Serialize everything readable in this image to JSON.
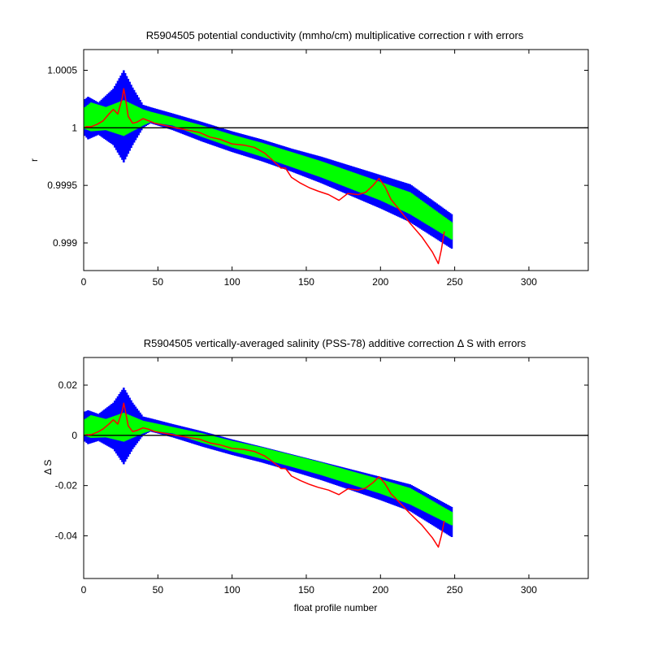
{
  "colors": {
    "background": "#ffffff",
    "axes": "#000000",
    "error_outer": "#0000ff",
    "error_inner": "#00ff00",
    "correction_line": "#ff0000",
    "reference_line": "#000000"
  },
  "chart_data": [
    {
      "type": "line",
      "title": "R5904505 potential conductivity (mmho/cm) multiplicative correction r with errors",
      "xlabel": "",
      "ylabel": "r",
      "xlim": [
        0,
        340
      ],
      "ylim": [
        0.99876,
        1.00068
      ],
      "xticks": [
        0,
        50,
        100,
        150,
        200,
        250,
        300
      ],
      "xtick_labels": [
        "0",
        "50",
        "100",
        "150",
        "200",
        "250",
        "300"
      ],
      "yticks": [
        0.999,
        0.9995,
        1,
        1.0005
      ],
      "ytick_labels": [
        "0.999",
        "0.9995",
        "1",
        "1.0005"
      ],
      "reference_line": 1,
      "grid": false,
      "legend": "none",
      "series": [
        {
          "role": "outer-error-upper",
          "x": [
            1,
            3,
            10,
            20,
            27,
            33,
            40,
            45,
            60,
            80,
            100,
            120,
            140,
            160,
            180,
            200,
            220,
            248
          ],
          "y": [
            1.00025,
            1.00027,
            1.00022,
            1.00034,
            1.0005,
            1.00035,
            1.0002,
            1.00018,
            1.000125,
            1.00005,
            0.99997,
            0.9999,
            0.99982,
            0.99975,
            0.99967,
            0.99959,
            0.99951,
            0.99925
          ]
        },
        {
          "role": "outer-error-lower",
          "x": [
            1,
            3,
            10,
            20,
            27,
            33,
            40,
            45,
            60,
            80,
            100,
            120,
            140,
            160,
            180,
            200,
            220,
            248
          ],
          "y": [
            0.99993,
            0.9999,
            0.99994,
            0.99985,
            0.9997,
            0.99985,
            1.0,
            1.00004,
            0.99998,
            0.99988,
            0.99979,
            0.99971,
            0.99962,
            0.99952,
            0.99941,
            0.9993,
            0.99918,
            0.99895
          ]
        },
        {
          "role": "inner-error-upper",
          "x": [
            1,
            5,
            15,
            27,
            40,
            45,
            60,
            80,
            100,
            120,
            140,
            160,
            180,
            200,
            220,
            248
          ],
          "y": [
            1.00018,
            1.00022,
            1.00018,
            1.00024,
            1.00016,
            1.00014,
            1.00009,
            1.00002,
            0.99994,
            0.99987,
            0.99979,
            0.99971,
            0.99962,
            0.99953,
            0.99944,
            0.99918
          ]
        },
        {
          "role": "inner-error-lower",
          "x": [
            1,
            5,
            15,
            27,
            40,
            45,
            60,
            80,
            100,
            120,
            140,
            160,
            180,
            200,
            220,
            248
          ],
          "y": [
            0.99999,
            0.99997,
            0.99998,
            0.99993,
            1.00002,
            1.00005,
            1.00002,
            0.99992,
            0.99983,
            0.99975,
            0.99966,
            0.99957,
            0.99947,
            0.99937,
            0.99925,
            0.99903
          ]
        },
        {
          "role": "correction",
          "x": [
            1,
            5,
            9,
            13,
            17,
            20,
            23,
            26,
            27,
            28,
            30,
            33,
            36,
            40,
            44,
            48,
            55,
            62,
            70,
            78,
            85,
            92,
            100,
            108,
            115,
            122,
            128,
            133,
            136,
            140,
            146,
            152,
            158,
            165,
            172,
            178,
            185,
            190,
            195,
            199,
            203,
            207,
            212,
            220,
            228,
            235,
            239,
            241,
            243
          ],
          "y": [
            1.00001,
            1.00001,
            1.00003,
            1.00006,
            1.00012,
            1.00016,
            1.00012,
            1.00026,
            1.00034,
            1.00027,
            1.0001,
            1.00004,
            1.00005,
            1.00008,
            1.00006,
            1.00004,
            1.00002,
            1.0,
            0.99998,
            0.99996,
            0.99992,
            0.9999,
            0.99986,
            0.99985,
            0.99983,
            0.99978,
            0.99971,
            0.99965,
            0.99965,
            0.99957,
            0.99952,
            0.99948,
            0.99945,
            0.99942,
            0.99937,
            0.99943,
            0.99942,
            0.99944,
            0.9995,
            0.99956,
            0.99949,
            0.99938,
            0.9993,
            0.99917,
            0.99905,
            0.99892,
            0.99882,
            0.99894,
            0.9991
          ]
        }
      ]
    },
    {
      "type": "line",
      "title": "R5904505 vertically-averaged salinity (PSS-78) additive correction Δ S with errors",
      "xlabel": "float profile number",
      "ylabel": "Δ S",
      "xlim": [
        0,
        340
      ],
      "ylim": [
        -0.057,
        0.031
      ],
      "xticks": [
        0,
        50,
        100,
        150,
        200,
        250,
        300
      ],
      "xtick_labels": [
        "0",
        "50",
        "100",
        "150",
        "200",
        "250",
        "300"
      ],
      "yticks": [
        -0.04,
        -0.02,
        0,
        0.02
      ],
      "ytick_labels": [
        "-0.04",
        "-0.02",
        "0",
        "0.02"
      ],
      "reference_line": 0,
      "grid": false,
      "legend": "none",
      "series": [
        {
          "role": "outer-error-upper",
          "x": [
            1,
            3,
            10,
            20,
            27,
            33,
            40,
            45,
            60,
            80,
            100,
            120,
            140,
            160,
            180,
            200,
            220,
            248
          ],
          "y": [
            0.0095,
            0.01,
            0.0085,
            0.013,
            0.019,
            0.013,
            0.0075,
            0.0068,
            0.0045,
            0.0016,
            -0.0016,
            -0.0045,
            -0.0075,
            -0.0105,
            -0.0135,
            -0.0165,
            -0.0195,
            -0.0285
          ]
        },
        {
          "role": "outer-error-lower",
          "x": [
            1,
            3,
            10,
            20,
            27,
            33,
            40,
            45,
            60,
            80,
            100,
            120,
            140,
            160,
            180,
            200,
            220,
            248
          ],
          "y": [
            -0.0025,
            -0.0035,
            -0.0022,
            -0.0055,
            -0.0115,
            -0.0055,
            0.0,
            0.0015,
            -0.0008,
            -0.0045,
            -0.0078,
            -0.0108,
            -0.0142,
            -0.0178,
            -0.0218,
            -0.0258,
            -0.0302,
            -0.0405
          ]
        },
        {
          "role": "inner-error-upper",
          "x": [
            1,
            5,
            15,
            27,
            40,
            45,
            60,
            80,
            100,
            120,
            140,
            160,
            180,
            200,
            220,
            248
          ],
          "y": [
            0.0065,
            0.008,
            0.0065,
            0.009,
            0.0058,
            0.0052,
            0.0033,
            0.0008,
            -0.0022,
            -0.0048,
            -0.0078,
            -0.0108,
            -0.0142,
            -0.0175,
            -0.021,
            -0.0305
          ]
        },
        {
          "role": "inner-error-lower",
          "x": [
            1,
            5,
            15,
            27,
            40,
            45,
            60,
            80,
            100,
            120,
            140,
            160,
            180,
            200,
            220,
            248
          ],
          "y": [
            -0.0002,
            -0.001,
            -0.0008,
            -0.0025,
            0.0008,
            0.0018,
            0.0008,
            -0.003,
            -0.0064,
            -0.0093,
            -0.0125,
            -0.0158,
            -0.0195,
            -0.0232,
            -0.0275,
            -0.0358
          ]
        },
        {
          "role": "correction",
          "x": [
            1,
            5,
            9,
            13,
            17,
            20,
            23,
            26,
            27,
            28,
            30,
            33,
            36,
            40,
            44,
            48,
            55,
            62,
            70,
            78,
            85,
            92,
            100,
            108,
            115,
            122,
            128,
            133,
            136,
            140,
            146,
            152,
            158,
            165,
            172,
            178,
            185,
            190,
            195,
            199,
            203,
            207,
            212,
            220,
            228,
            235,
            239,
            241,
            243
          ],
          "y": [
            0.0002,
            0.0003,
            0.0012,
            0.0025,
            0.0045,
            0.0062,
            0.0045,
            0.0098,
            0.0128,
            0.01,
            0.0038,
            0.0015,
            0.002,
            0.003,
            0.0024,
            0.0015,
            0.0008,
            0.0,
            -0.0008,
            -0.0015,
            -0.003,
            -0.0038,
            -0.0052,
            -0.0056,
            -0.0064,
            -0.0082,
            -0.0108,
            -0.0132,
            -0.0132,
            -0.0162,
            -0.018,
            -0.0195,
            -0.0207,
            -0.0218,
            -0.0236,
            -0.0213,
            -0.0218,
            -0.021,
            -0.0188,
            -0.0165,
            -0.0192,
            -0.0232,
            -0.0262,
            -0.0312,
            -0.0358,
            -0.0408,
            -0.0445,
            -0.04,
            -0.034
          ]
        }
      ]
    }
  ]
}
